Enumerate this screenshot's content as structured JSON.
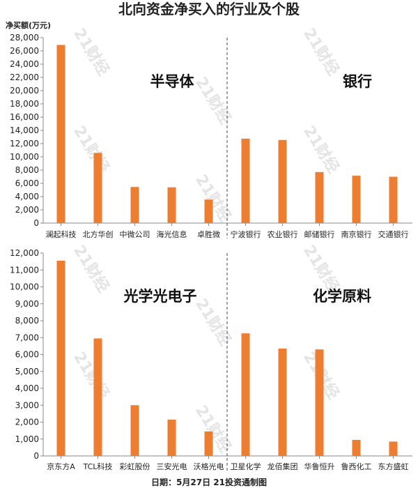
{
  "title": "北向资金净买入的行业及个股",
  "unit_label": "净买额(万元)",
  "footer": "日期：5月27日 21投资通制图",
  "watermark": "21财经",
  "colors": {
    "bar": "#ED7D31",
    "axis": "#888888",
    "divider": "#444444"
  },
  "chart_data": [
    {
      "type": "bar",
      "ylim": [
        0,
        28000
      ],
      "ytick_step": 2000,
      "groups": [
        {
          "label": "半导体",
          "categories": [
            "澜起科技",
            "北方华创",
            "中微公司",
            "海光信息",
            "卓胜微"
          ],
          "values": [
            26900,
            10600,
            5450,
            5400,
            3550
          ]
        },
        {
          "label": "银行",
          "categories": [
            "宁波银行",
            "农业银行",
            "邮储银行",
            "南京银行",
            "交通银行"
          ],
          "values": [
            12750,
            12550,
            7700,
            7150,
            7000
          ]
        }
      ]
    },
    {
      "type": "bar",
      "ylim": [
        0,
        12000
      ],
      "ytick_step": 1000,
      "groups": [
        {
          "label": "光学光电子",
          "categories": [
            "京东方A",
            "TCL科技",
            "彩虹股份",
            "三安光电",
            "沃格光电"
          ],
          "values": [
            11550,
            6950,
            3000,
            2150,
            1450
          ]
        },
        {
          "label": "化学原料",
          "categories": [
            "卫星化学",
            "龙佰集团",
            "华鲁恒升",
            "鲁西化工",
            "东方盛虹"
          ],
          "values": [
            7250,
            6350,
            6300,
            950,
            850
          ]
        }
      ]
    }
  ]
}
